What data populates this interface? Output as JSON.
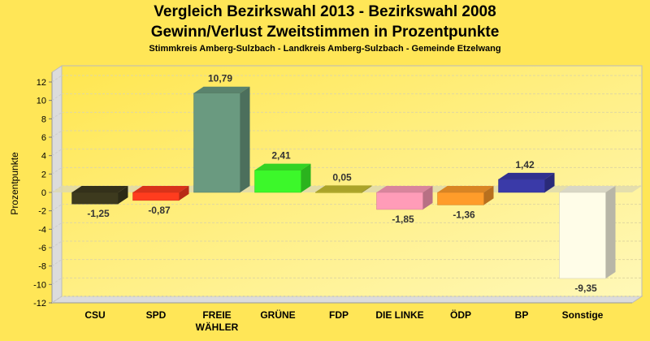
{
  "chart_data": {
    "type": "bar",
    "title": "Vergleich Bezirkswahl 2013 - Bezirkswahl 2008",
    "subtitle": "Gewinn/Verlust Zweitstimmen in Prozentpunkte",
    "subsubtitle": "Stimmkreis Amberg-Sulzbach - Landkreis Amberg-Sulzbach - Gemeinde Etzelwang",
    "xlabel": "",
    "ylabel": "Prozentpunkte",
    "ylim": [
      -12,
      12
    ],
    "yticks": [
      12,
      10,
      8,
      6,
      4,
      2,
      0,
      -2,
      -4,
      -6,
      -8,
      -10,
      -12
    ],
    "grid": true,
    "categories": [
      "CSU",
      "SPD",
      "FREIE WÄHLER",
      "GRÜNE",
      "FDP",
      "DIE LINKE",
      "ÖDP",
      "BP",
      "Sonstige"
    ],
    "values": [
      -1.25,
      -0.87,
      10.79,
      2.41,
      0.05,
      -1.85,
      -1.36,
      1.42,
      -9.35
    ],
    "labels": [
      "-1,25",
      "-0,87",
      "10,79",
      "2,41",
      "0,05",
      "-1,85",
      "-1,36",
      "1,42",
      "-9,35"
    ],
    "colors": [
      "#3d3a1e",
      "#ff3c1e",
      "#6a9a80",
      "#3cf82a",
      "#c8c030",
      "#ff9cb8",
      "#ff9c2a",
      "#3a3aa8",
      "#fffde8"
    ]
  }
}
